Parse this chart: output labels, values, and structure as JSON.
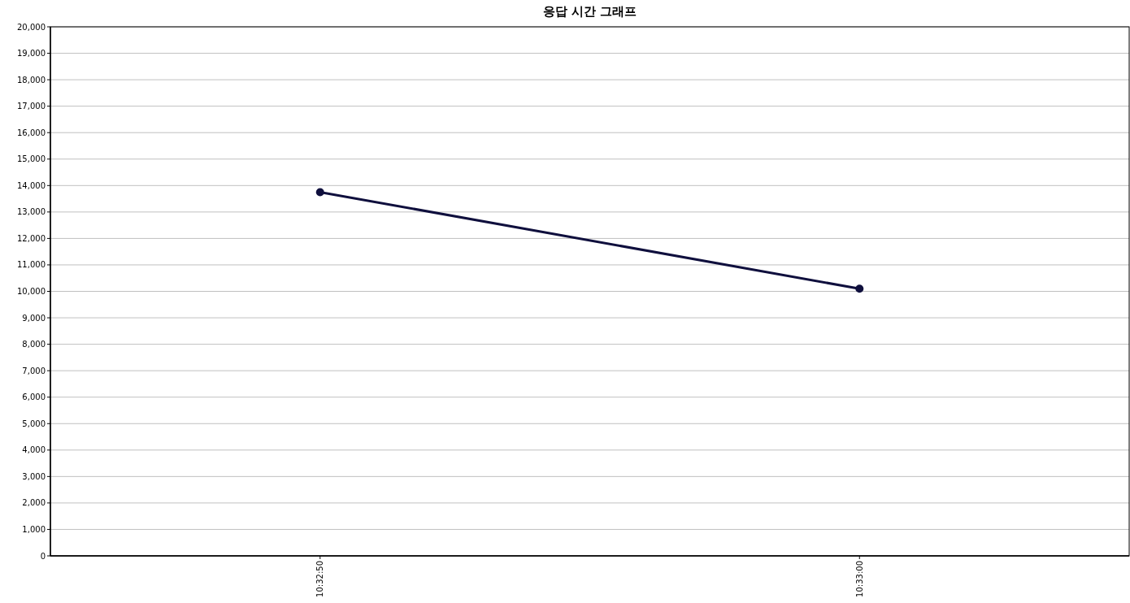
{
  "chart_data": {
    "type": "line",
    "title": "응답 시간 그래프",
    "categories": [
      "10:32:50",
      "10:33:00"
    ],
    "series": [
      {
        "color": "#0f0f3d",
        "values": [
          13750,
          10100
        ]
      }
    ],
    "ylim": [
      0,
      20000
    ],
    "yticks": [
      {
        "value": 0,
        "label": "0"
      },
      {
        "value": 1000,
        "label": "1,000"
      },
      {
        "value": 2000,
        "label": "2,000"
      },
      {
        "value": 3000,
        "label": "3,000"
      },
      {
        "value": 4000,
        "label": "4,000"
      },
      {
        "value": 5000,
        "label": "5,000"
      },
      {
        "value": 6000,
        "label": "6,000"
      },
      {
        "value": 7000,
        "label": "7,000"
      },
      {
        "value": 8000,
        "label": "8,000"
      },
      {
        "value": 9000,
        "label": "9,000"
      },
      {
        "value": 10000,
        "label": "10,000"
      },
      {
        "value": 11000,
        "label": "11,000"
      },
      {
        "value": 12000,
        "label": "12,000"
      },
      {
        "value": 13000,
        "label": "13,000"
      },
      {
        "value": 14000,
        "label": "14,000"
      },
      {
        "value": 15000,
        "label": "15,000"
      },
      {
        "value": 16000,
        "label": "16,000"
      },
      {
        "value": 17000,
        "label": "17,000"
      },
      {
        "value": 18000,
        "label": "18,000"
      },
      {
        "value": 19000,
        "label": "19,000"
      },
      {
        "value": 20000,
        "label": "20,000"
      }
    ],
    "grid": "y",
    "marker": "circle",
    "line_style": "solid"
  }
}
